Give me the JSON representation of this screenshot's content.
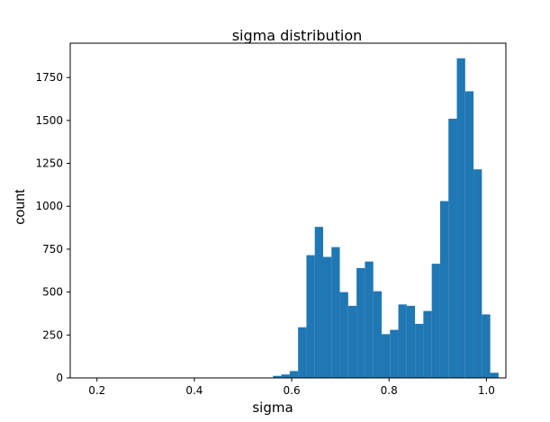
{
  "chart_data": {
    "type": "bar",
    "title": "sigma distribution",
    "xlabel": "sigma",
    "ylabel": "count",
    "xlim": [
      0.145,
      1.04
    ],
    "ylim": [
      0,
      1950
    ],
    "xticks": [
      0.2,
      0.4,
      0.6,
      0.8,
      1.0
    ],
    "xtick_labels": [
      "0.2",
      "0.4",
      "0.6",
      "0.8",
      "1.0"
    ],
    "yticks": [
      0,
      250,
      500,
      750,
      1000,
      1250,
      1500,
      1750
    ],
    "ytick_labels": [
      "0",
      "250",
      "500",
      "750",
      "1000",
      "1250",
      "1500",
      "1750"
    ],
    "bin_width": 0.01716,
    "bar_color": "#1f77b4",
    "grid": false,
    "bins": [
      {
        "x": 0.1755,
        "count": 2
      },
      {
        "x": 0.2098,
        "count": 2
      },
      {
        "x": 0.5187,
        "count": 2
      },
      {
        "x": 0.5702,
        "count": 12
      },
      {
        "x": 0.5874,
        "count": 20
      },
      {
        "x": 0.6045,
        "count": 40
      },
      {
        "x": 0.6217,
        "count": 295
      },
      {
        "x": 0.6389,
        "count": 715
      },
      {
        "x": 0.656,
        "count": 880
      },
      {
        "x": 0.6732,
        "count": 705
      },
      {
        "x": 0.6903,
        "count": 762
      },
      {
        "x": 0.7075,
        "count": 500
      },
      {
        "x": 0.7247,
        "count": 420
      },
      {
        "x": 0.7418,
        "count": 640
      },
      {
        "x": 0.759,
        "count": 678
      },
      {
        "x": 0.7762,
        "count": 505
      },
      {
        "x": 0.7933,
        "count": 255
      },
      {
        "x": 0.8105,
        "count": 280
      },
      {
        "x": 0.8277,
        "count": 428
      },
      {
        "x": 0.8448,
        "count": 420
      },
      {
        "x": 0.862,
        "count": 315
      },
      {
        "x": 0.8791,
        "count": 390
      },
      {
        "x": 0.8963,
        "count": 665
      },
      {
        "x": 0.9135,
        "count": 1030
      },
      {
        "x": 0.9306,
        "count": 1510
      },
      {
        "x": 0.9478,
        "count": 1862
      },
      {
        "x": 0.965,
        "count": 1670
      },
      {
        "x": 0.9821,
        "count": 1215
      },
      {
        "x": 0.9993,
        "count": 370
      },
      {
        "x": 1.0164,
        "count": 30
      }
    ]
  }
}
